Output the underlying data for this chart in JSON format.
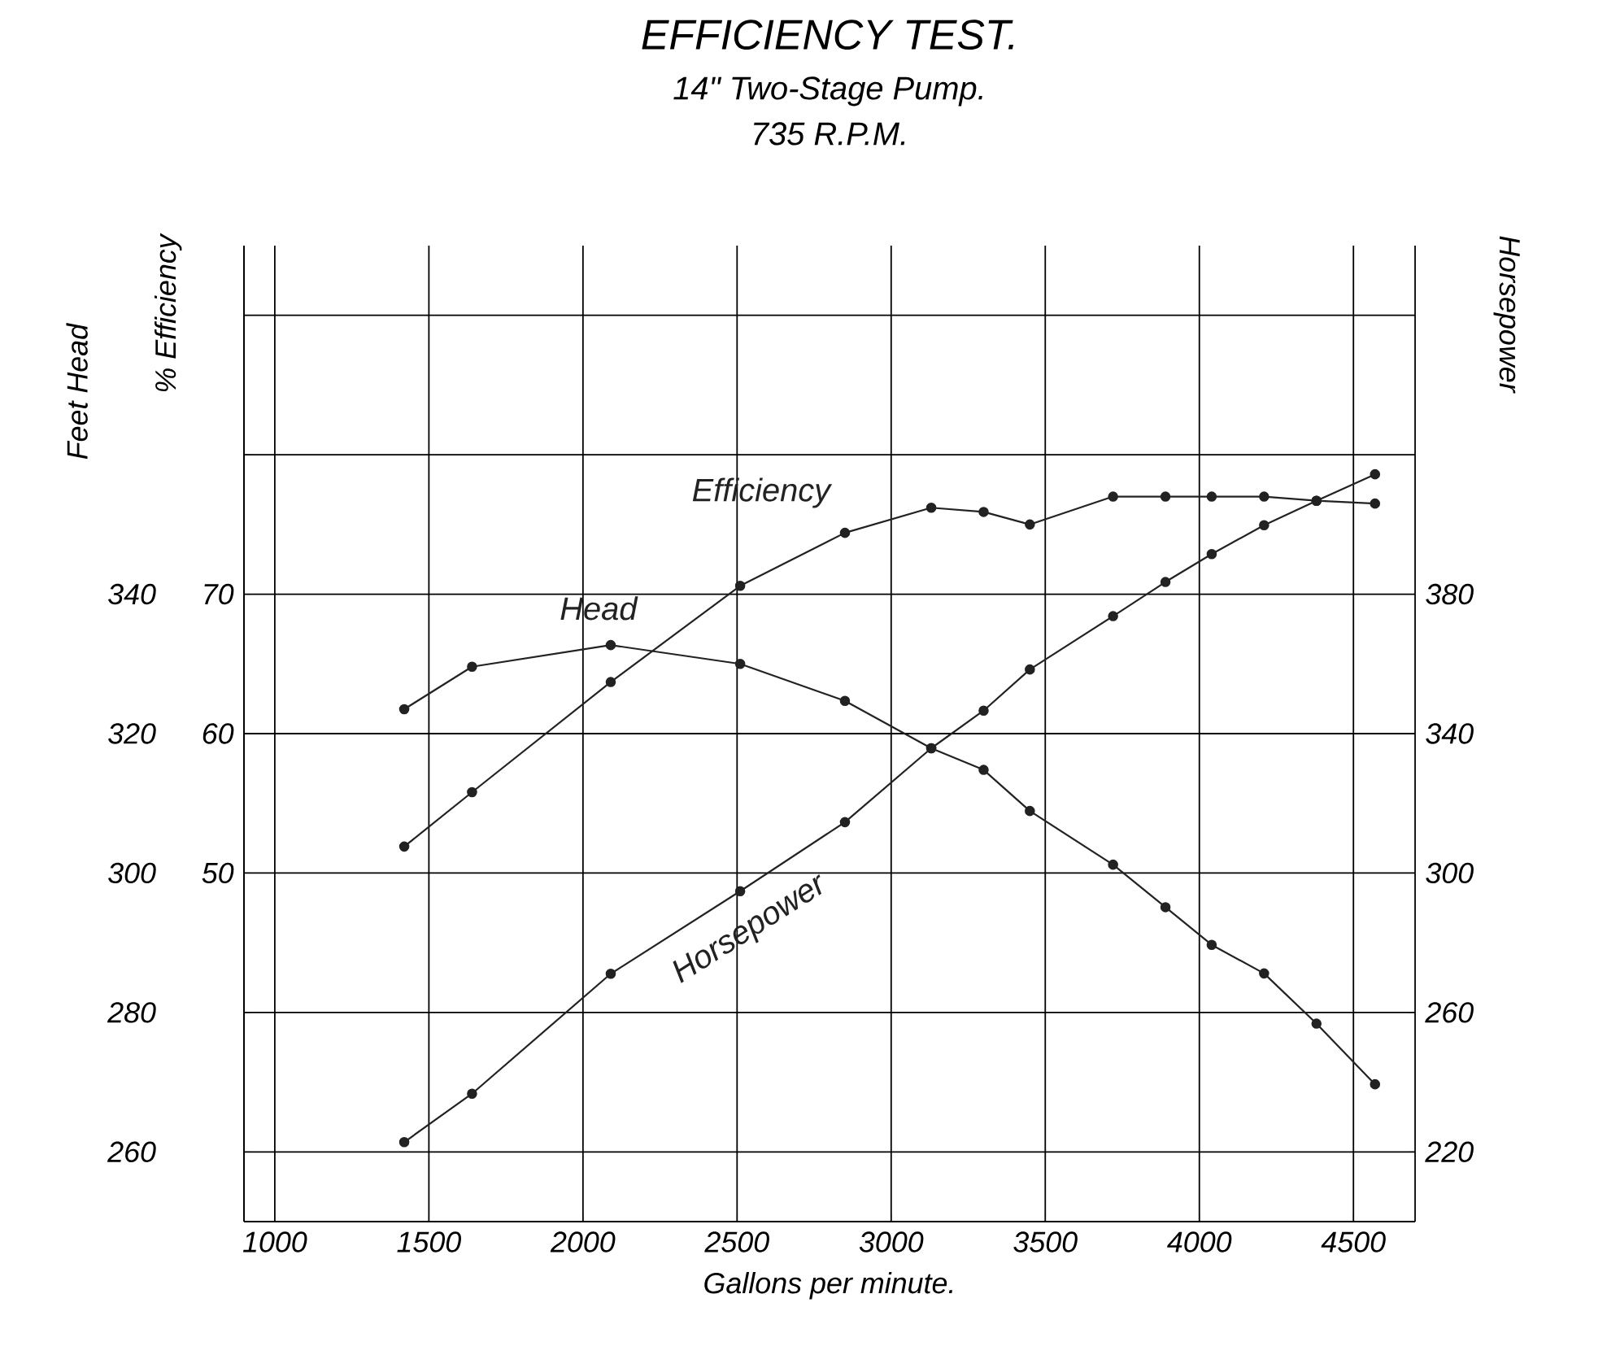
{
  "chart_data": {
    "type": "line",
    "title": "EFFICIENCY TEST.",
    "subtitle": "14\" Two-Stage Pump.",
    "annotations": [
      "735 R.P.M."
    ],
    "xlabel": "Gallons per minute.",
    "ylabel": "Feet Head",
    "y2label": "Horsepower",
    "y3label": "% Efficiency",
    "x": [
      1420,
      1640,
      2090,
      2510,
      2850,
      3130,
      3300,
      3450,
      3720,
      3890,
      4040,
      4210,
      4380,
      4570
    ],
    "xlim": [
      900,
      4700
    ],
    "xticks": [
      1000,
      1500,
      2000,
      2500,
      3000,
      3500,
      4000,
      4500
    ],
    "ylim": [
      250,
      390
    ],
    "yticks": [
      260,
      280,
      300,
      320,
      340,
      {
        "value": 360,
        "label": null
      },
      {
        "value": 380,
        "label": null
      }
    ],
    "y2lim": [
      200,
      480
    ],
    "y2ticks": [
      220,
      260,
      300,
      340,
      380
    ],
    "y3lim": [
      25,
      95
    ],
    "y3ticks": [
      50,
      60,
      70
    ],
    "grid": true,
    "marker": "circle",
    "line_style": "solid",
    "series": [
      {
        "name": "Head",
        "color": "#222222",
        "values": [
          323.5,
          329.6,
          332.7,
          330,
          324.7,
          317.9,
          314.8,
          308.9,
          301.2,
          295.1,
          289.7,
          285.6,
          278.4,
          269.7
        ]
      },
      {
        "name": "Efficiency",
        "color": "#222222",
        "axis": "y3",
        "values": [
          51.9,
          55.8,
          63.7,
          70.6,
          74.4,
          76.2,
          75.9,
          75.0,
          77.0,
          77.0,
          77.0,
          77.0,
          76.7,
          76.5
        ]
      },
      {
        "name": "Horsepower",
        "color": "#222222",
        "axis": "y2",
        "values": [
          222.8,
          236.7,
          271.1,
          294.8,
          314.6,
          335.8,
          346.6,
          358.4,
          373.7,
          383.5,
          391.5,
          399.8,
          406.8,
          414.4
        ]
      }
    ]
  }
}
